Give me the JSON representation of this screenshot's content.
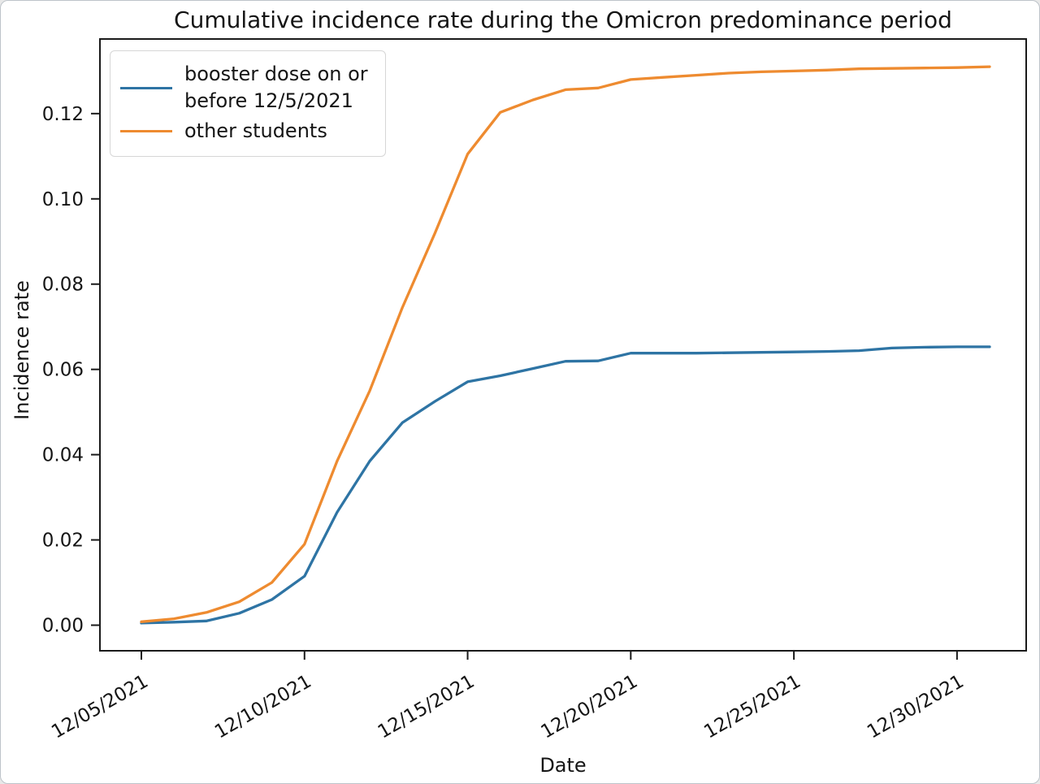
{
  "figure": {
    "background": "#ffffff",
    "border_color": "#bdc3c9",
    "spine_color": "#1a1a1a"
  },
  "chart_data": {
    "type": "line",
    "title": "Cumulative incidence rate during the Omicron predominance period",
    "xlabel": "Date",
    "ylabel": "Incidence rate",
    "grid": false,
    "legend_position": "upper left",
    "x": [
      "12/05/2021",
      "12/06/2021",
      "12/07/2021",
      "12/08/2021",
      "12/09/2021",
      "12/10/2021",
      "12/11/2021",
      "12/12/2021",
      "12/13/2021",
      "12/14/2021",
      "12/15/2021",
      "12/16/2021",
      "12/17/2021",
      "12/18/2021",
      "12/19/2021",
      "12/20/2021",
      "12/21/2021",
      "12/22/2021",
      "12/23/2021",
      "12/24/2021",
      "12/25/2021",
      "12/26/2021",
      "12/27/2021",
      "12/28/2021",
      "12/29/2021",
      "12/30/2021",
      "12/31/2021"
    ],
    "x_tick_labels": [
      "12/05/2021",
      "12/10/2021",
      "12/15/2021",
      "12/20/2021",
      "12/25/2021",
      "12/30/2021"
    ],
    "x_tick_indices": [
      0,
      5,
      10,
      15,
      20,
      25
    ],
    "x_tick_rotation_deg": 30,
    "y_ticks": [
      0.0,
      0.02,
      0.04,
      0.06,
      0.08,
      0.1,
      0.12
    ],
    "y_tick_labels": [
      "0.00",
      "0.02",
      "0.04",
      "0.06",
      "0.08",
      "0.10",
      "0.12"
    ],
    "ylim": [
      -0.006,
      0.1375
    ],
    "xlim_days": [
      -1.27,
      27.12
    ],
    "series": [
      {
        "name": "booster dose on or before 12/5/2021",
        "color": "#2e74a4",
        "values": [
          0.0005,
          0.0007,
          0.001,
          0.0028,
          0.006,
          0.0115,
          0.0265,
          0.0385,
          0.0475,
          0.0525,
          0.0571,
          0.0585,
          0.0602,
          0.0619,
          0.062,
          0.0638,
          0.0638,
          0.0638,
          0.0639,
          0.064,
          0.0641,
          0.0642,
          0.0644,
          0.065,
          0.0652,
          0.0653,
          0.0653
        ]
      },
      {
        "name": "other students",
        "color": "#ee8b30",
        "values": [
          0.0008,
          0.0015,
          0.003,
          0.0055,
          0.01,
          0.019,
          0.0385,
          0.055,
          0.0745,
          0.092,
          0.1105,
          0.1203,
          0.1232,
          0.1256,
          0.126,
          0.128,
          0.1285,
          0.129,
          0.1295,
          0.1298,
          0.13,
          0.1302,
          0.1305,
          0.1306,
          0.1307,
          0.1308,
          0.131
        ]
      }
    ]
  }
}
